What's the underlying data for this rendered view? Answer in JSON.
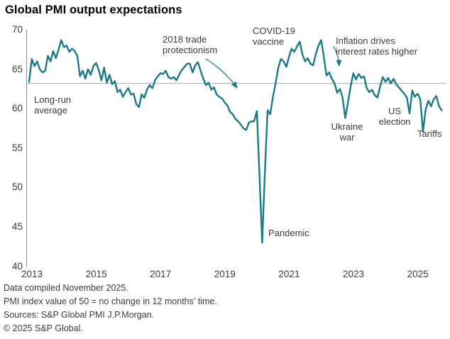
{
  "page": {
    "title": "Global PMI output expectations"
  },
  "chart_data": {
    "type": "line",
    "title": "Global PMI output expectations",
    "frequency": "monthly",
    "x_start": "2013-01",
    "x_end": "2025-11",
    "ylim": [
      40,
      70
    ],
    "y_ticks": [
      70,
      65,
      60,
      55,
      50,
      45,
      40
    ],
    "x_ticks": [
      2013,
      2015,
      2017,
      2019,
      2021,
      2023,
      2025
    ],
    "grid": "off",
    "legend": "none",
    "long_run_average": 63.2,
    "line_color": "#1a7a8c",
    "axis_color": "#999999",
    "average_line_color": "#a9a9a9",
    "series": [
      {
        "name": "Global PMI output expectations index",
        "values": [
          63.4,
          66.3,
          65.4,
          66.0,
          65.0,
          64.6,
          64.8,
          66.7,
          66.0,
          67.3,
          66.4,
          67.5,
          68.7,
          67.8,
          68.0,
          67.2,
          67.6,
          67.3,
          66.7,
          64.1,
          64.8,
          63.8,
          65.0,
          64.3,
          65.4,
          65.8,
          64.9,
          63.6,
          65.2,
          63.3,
          64.3,
          63.1,
          63.5,
          62.1,
          62.4,
          61.5,
          62.1,
          62.6,
          61.8,
          61.9,
          60.6,
          60.2,
          61.8,
          61.4,
          62.4,
          63.0,
          62.6,
          63.6,
          64.1,
          64.5,
          64.4,
          64.8,
          64.0,
          63.8,
          64.0,
          63.6,
          64.3,
          64.9,
          65.3,
          65.7,
          65.7,
          64.6,
          65.5,
          65.9,
          64.8,
          63.8,
          63.0,
          63.3,
          62.4,
          62.7,
          61.8,
          61.5,
          61.3,
          60.8,
          60.4,
          59.6,
          59.3,
          58.7,
          58.4,
          58.0,
          57.5,
          57.3,
          58.2,
          58.4,
          58.4,
          59.7,
          51.5,
          43.0,
          52.0,
          59.8,
          59.3,
          61.5,
          63.2,
          65.2,
          66.3,
          66.0,
          65.3,
          66.6,
          67.6,
          67.2,
          67.9,
          68.5,
          66.9,
          66.0,
          66.4,
          65.7,
          65.5,
          66.9,
          68.0,
          68.7,
          66.6,
          64.2,
          64.6,
          63.8,
          63.2,
          62.0,
          62.5,
          61.4,
          58.8,
          60.8,
          62.8,
          64.5,
          63.7,
          64.4,
          63.9,
          64.1,
          62.6,
          62.1,
          62.4,
          61.7,
          61.4,
          62.8,
          64.0,
          63.4,
          63.9,
          63.2,
          63.8,
          63.1,
          62.7,
          62.3,
          61.9,
          61.4,
          59.4,
          62.3,
          61.5,
          61.9,
          61.2,
          57.1,
          59.9,
          61.0,
          60.3,
          61.2,
          61.6,
          60.3,
          59.8
        ]
      }
    ],
    "annotations": {
      "long_run_average": "Long-run\naverage",
      "trade_protectionism": "2018 trade\nprotectionism",
      "covid_vaccine": "COVID-19\nvaccine",
      "inflation": "Inflation drives\ninterest rates higher",
      "pandemic": "Pandemic",
      "ukraine_war": "Ukraine\nwar",
      "us_election": "US\nelection",
      "tariffs": "Tariffs"
    }
  },
  "footer": {
    "lines": [
      "Data compiled November 2025.",
      "PMI index value of 50 = no change in 12 months' time.",
      "Sources: S&P Global PMI J.P.Morgan.",
      "© 2025 S&P Global."
    ]
  }
}
